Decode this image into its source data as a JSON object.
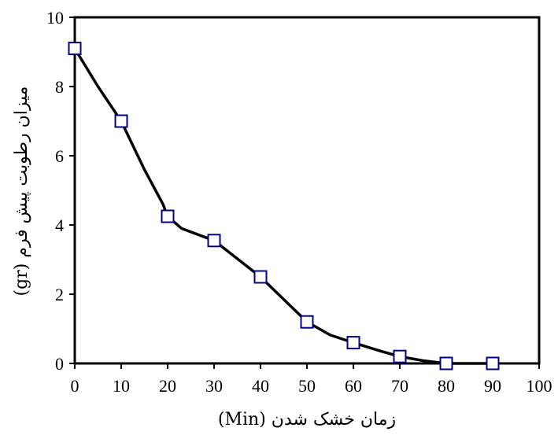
{
  "chart_data": {
    "type": "line",
    "xlabel": "زمان خشک شدن (Min)",
    "ylabel": "میزان رطوبت پیش فرم (gr)",
    "xlim": [
      0,
      100
    ],
    "ylim": [
      0,
      10
    ],
    "x_ticks": [
      0,
      10,
      20,
      30,
      40,
      50,
      60,
      70,
      80,
      90,
      100
    ],
    "y_ticks": [
      0,
      2,
      4,
      6,
      8,
      10
    ],
    "grid": false,
    "series": [
      {
        "color": "#000000",
        "marker": "square",
        "marker_fill": "#ffffff",
        "marker_edge": "#00008b",
        "x": [
          0,
          10,
          20,
          30,
          40,
          50,
          60,
          70,
          80,
          90
        ],
        "y": [
          9.1,
          7.0,
          4.25,
          3.55,
          2.5,
          1.2,
          0.6,
          0.2,
          0.0,
          0.0
        ]
      }
    ],
    "curve": {
      "x": [
        0,
        5,
        9,
        10,
        15,
        19,
        20,
        23,
        30,
        40,
        50,
        55,
        60,
        66,
        70,
        75,
        80,
        90
      ],
      "y": [
        9.1,
        8.0,
        7.2,
        7.0,
        5.6,
        4.6,
        4.25,
        3.9,
        3.55,
        2.5,
        1.2,
        0.82,
        0.6,
        0.35,
        0.2,
        0.08,
        0.0,
        0.0
      ]
    }
  }
}
